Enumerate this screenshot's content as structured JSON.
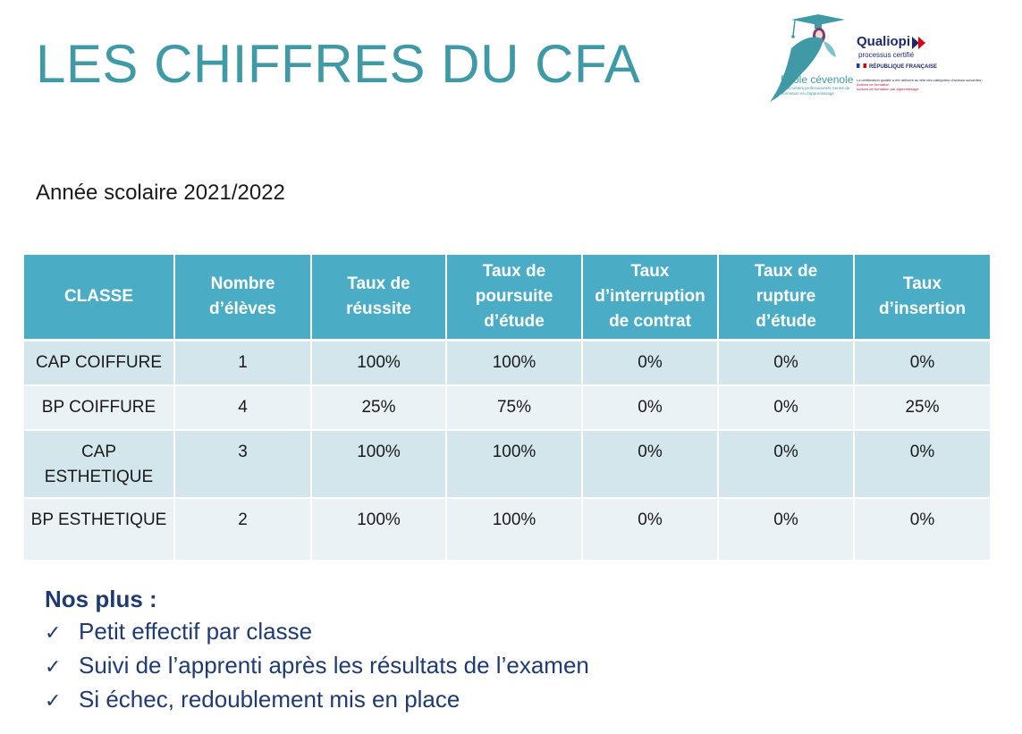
{
  "page": {
    "title": "LES CHIFFRES DU CFA",
    "subtitle": "Année scolaire 2021/2022"
  },
  "logos": {
    "ecole": {
      "name": "École cévenole",
      "tagline": "Des métiers professionnels Centre de formation en d'apprentissage"
    },
    "qualiopi": {
      "name": "Qualiopi",
      "subtitle": "processus certifié",
      "republique": "RÉPUBLIQUE FRANÇAISE",
      "cert_text": "La certification qualité a été délivrée au titre des catégories d'actions suivantes :",
      "cert_item1": "Actions de formation",
      "cert_item2": "Actions de formation par apprentissage",
      "colors": {
        "navy": "#1f2a6b",
        "red": "#e1000f"
      }
    }
  },
  "table": {
    "headers": [
      "CLASSE",
      "Nombre d’élèves",
      "Taux de réussite",
      "Taux de poursuite d’étude",
      "Taux d’interruption de contrat",
      "Taux de rupture d’étude",
      "Taux d’insertion"
    ],
    "rows": [
      [
        "CAP COIFFURE",
        "1",
        "100%",
        "100%",
        "0%",
        "0%",
        "0%"
      ],
      [
        "BP COIFFURE",
        "4",
        "25%",
        "75%",
        "0%",
        "0%",
        "25%"
      ],
      [
        "CAP ESTHETIQUE",
        "3",
        "100%",
        "100%",
        "0%",
        "0%",
        "0%"
      ],
      [
        "BP ESTHETIQUE",
        "2",
        "100%",
        "100%",
        "0%",
        "0%",
        "0%"
      ]
    ],
    "colors": {
      "header": "#4bacc6",
      "row_odd": "#d2e6ec",
      "row_even": "#eaf2f5"
    }
  },
  "plus": {
    "title": "Nos plus :",
    "check_icon": "✓",
    "items": [
      "Petit effectif par classe",
      "Suivi de l’apprenti après les résultats de l’examen",
      "Si échec, redoublement mis en place"
    ]
  },
  "colors": {
    "title": "#3f9aa5",
    "plus_text": "#1f3b6f"
  }
}
